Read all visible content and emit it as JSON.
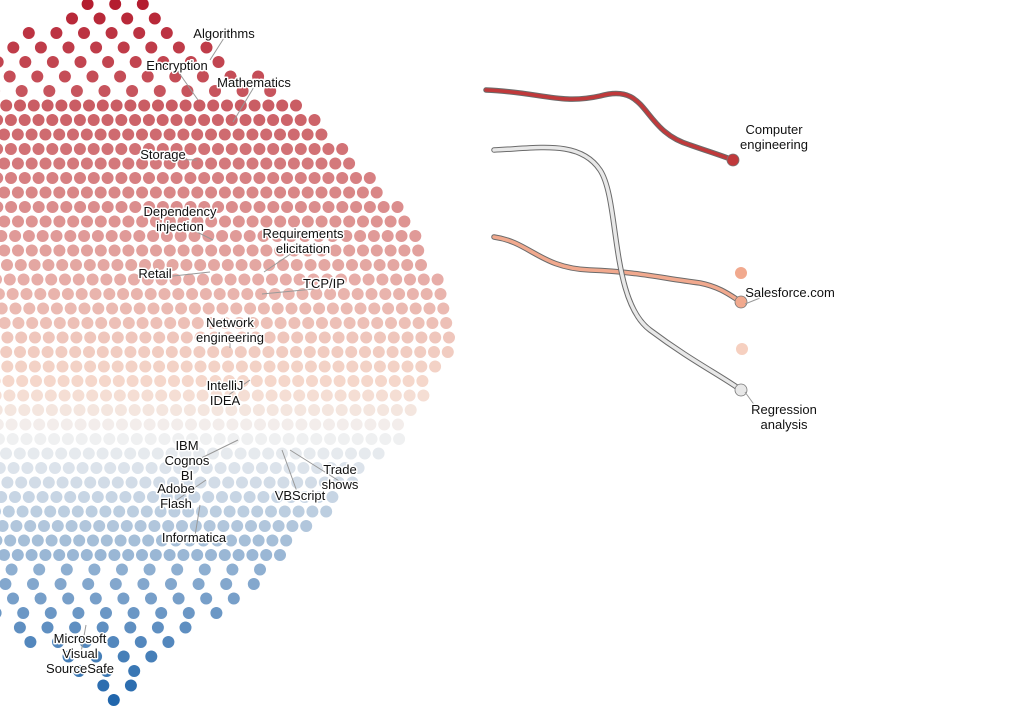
{
  "chart_data": {
    "type": "scatter",
    "title": "",
    "xlabel": "",
    "ylabel": "",
    "color_scale": {
      "high": "#b2182b",
      "mid": "#f2f2f2",
      "low": "#2166ac"
    },
    "skill_labels": [
      {
        "text": "Algorithms"
      },
      {
        "text": "Encryption"
      },
      {
        "text": "Mathematics"
      },
      {
        "text": "Storage"
      },
      {
        "text": "Dependency injection"
      },
      {
        "text": "Requirements elicitation"
      },
      {
        "text": "Retail"
      },
      {
        "text": "TCP/IP"
      },
      {
        "text": "Network engineering"
      },
      {
        "text": "IntelliJ IDEA"
      },
      {
        "text": "IBM Cognos BI"
      },
      {
        "text": "Trade shows"
      },
      {
        "text": "Adobe Flash"
      },
      {
        "text": "VBScript"
      },
      {
        "text": "Informatica"
      },
      {
        "text": "Microsoft Visual SourceSafe"
      }
    ],
    "trajectories": [
      {
        "name": "Computer engineering",
        "color": "#c0393b"
      },
      {
        "name": "Salesforce.com",
        "color": "#f1a98e"
      },
      {
        "name": "Regression analysis",
        "color": "#e8e8e8"
      }
    ],
    "extra_dots": [
      {
        "color": "#f1a98e"
      },
      {
        "color": "#f6d0c0"
      }
    ]
  }
}
